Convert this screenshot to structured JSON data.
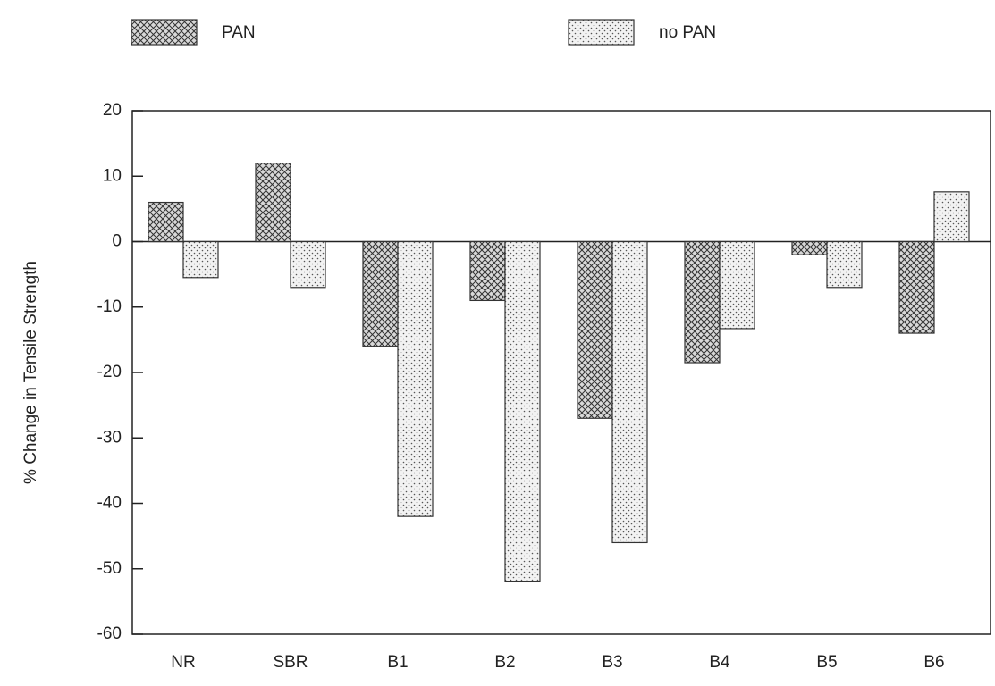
{
  "chart_data": {
    "type": "bar",
    "y_label": "% Change in Tensile Strength",
    "categories": [
      "NR",
      "SBR",
      "B1",
      "B2",
      "B3",
      "B4",
      "B5",
      "B6"
    ],
    "series": [
      {
        "name": "PAN",
        "pattern": "crosshatch",
        "values": [
          6,
          12,
          -16,
          -9,
          -27,
          -18.5,
          -2,
          -14
        ]
      },
      {
        "name": "no PAN",
        "pattern": "dots",
        "values": [
          -5.5,
          -7,
          -42,
          -52,
          -46,
          -13.3,
          -7,
          7.6
        ]
      }
    ],
    "ylim": [
      -60,
      20
    ],
    "yticks": [
      -60,
      -50,
      -40,
      -30,
      -20,
      -10,
      0,
      10,
      20
    ]
  }
}
